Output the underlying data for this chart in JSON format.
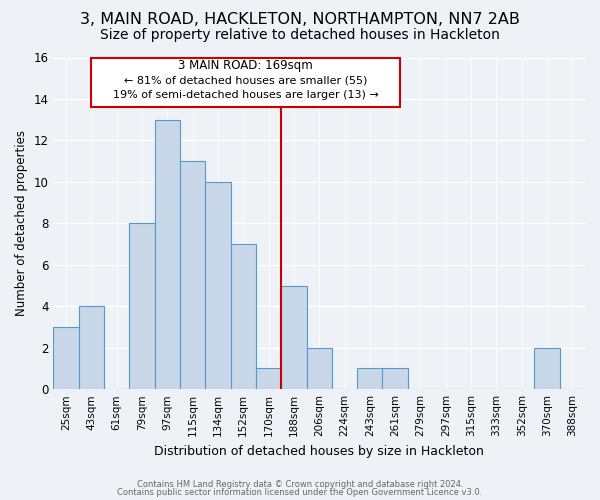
{
  "title": "3, MAIN ROAD, HACKLETON, NORTHAMPTON, NN7 2AB",
  "subtitle": "Size of property relative to detached houses in Hackleton",
  "xlabel": "Distribution of detached houses by size in Hackleton",
  "ylabel": "Number of detached properties",
  "bin_labels": [
    "25sqm",
    "43sqm",
    "61sqm",
    "79sqm",
    "97sqm",
    "115sqm",
    "134sqm",
    "152sqm",
    "170sqm",
    "188sqm",
    "206sqm",
    "224sqm",
    "243sqm",
    "261sqm",
    "279sqm",
    "297sqm",
    "315sqm",
    "333sqm",
    "352sqm",
    "370sqm",
    "388sqm"
  ],
  "bar_heights": [
    3,
    4,
    0,
    8,
    13,
    11,
    10,
    7,
    1,
    5,
    2,
    0,
    1,
    1,
    0,
    0,
    0,
    0,
    0,
    2,
    0
  ],
  "bar_color": "#c8d8e8",
  "bar_edge_color": "#5599cc",
  "property_line_x": 8.5,
  "property_line_color": "#cc0000",
  "ylim": [
    0,
    16
  ],
  "yticks": [
    0,
    2,
    4,
    6,
    8,
    10,
    12,
    14,
    16
  ],
  "annotation_title": "3 MAIN ROAD: 169sqm",
  "annotation_line1": "← 81% of detached houses are smaller (55)",
  "annotation_line2": "19% of semi-detached houses are larger (13) →",
  "annotation_box_color": "#ffffff",
  "annotation_box_edge": "#cc0000",
  "footer1": "Contains HM Land Registry data © Crown copyright and database right 2024.",
  "footer2": "Contains public sector information licensed under the Open Government Licence v3.0.",
  "background_color": "#eef2f7",
  "title_fontsize": 11.5,
  "subtitle_fontsize": 10
}
